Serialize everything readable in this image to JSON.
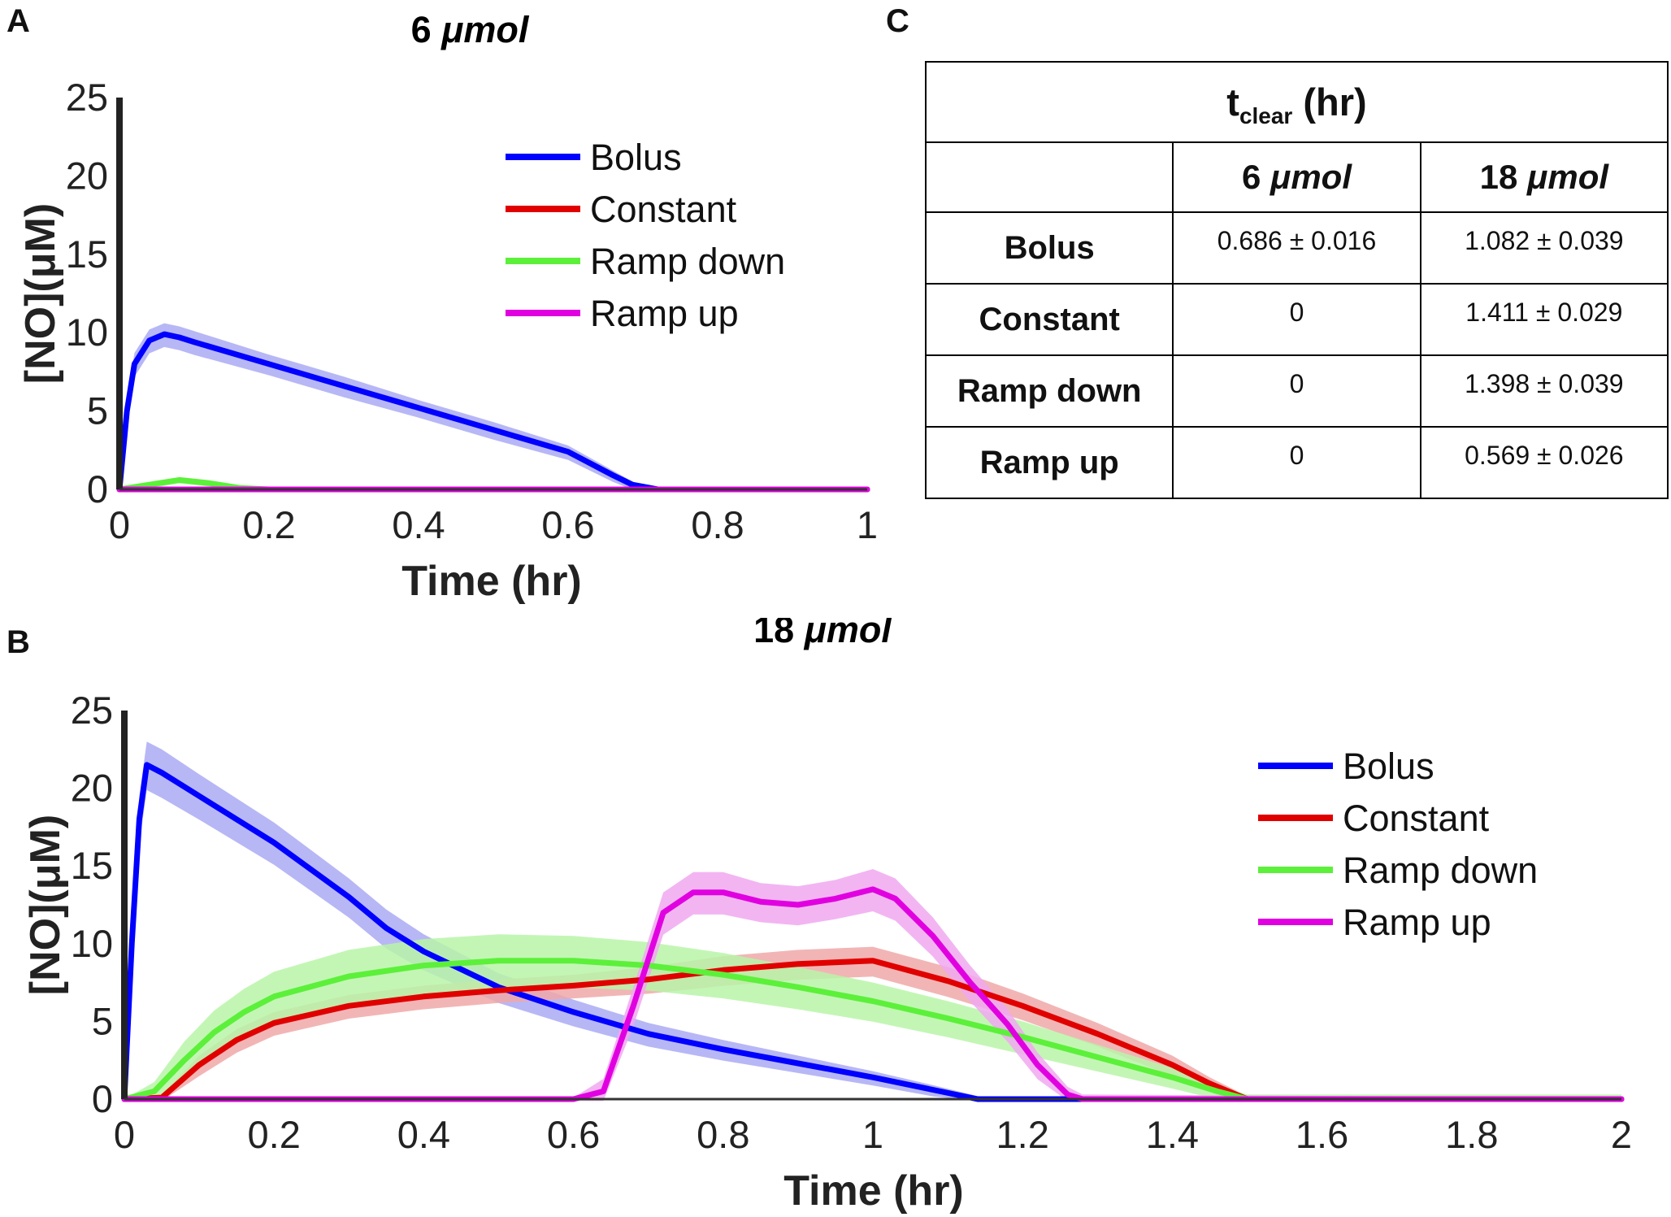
{
  "panels": {
    "a": "A",
    "b": "B",
    "c": "C"
  },
  "chart_data": [
    {
      "type": "line",
      "panel": "A",
      "title_num": "6",
      "title_unit": "μmol",
      "xlabel": "Time (hr)",
      "ylabel": "[NO](μM)",
      "xlim": [
        0,
        1
      ],
      "ylim": [
        0,
        25
      ],
      "xticks": [
        0,
        0.2,
        0.4,
        0.6,
        0.8,
        1
      ],
      "xtick_labels": [
        "0",
        "0.2",
        "0.4",
        "0.6",
        "0.8",
        "1"
      ],
      "yticks": [
        0,
        5,
        10,
        15,
        20,
        25
      ],
      "ytick_labels": [
        "0",
        "5",
        "10",
        "15",
        "20",
        "25"
      ],
      "legend_position": "top-right",
      "series": [
        {
          "name": "Bolus",
          "color": "#0000ff",
          "band": "#aaaaf5",
          "x": [
            0,
            0.01,
            0.02,
            0.04,
            0.06,
            0.08,
            0.1,
            0.2,
            0.3,
            0.4,
            0.5,
            0.6,
            0.66,
            0.686,
            0.72,
            1.0
          ],
          "y": [
            0,
            5,
            8,
            9.5,
            9.9,
            9.7,
            9.4,
            8.0,
            6.6,
            5.2,
            3.8,
            2.4,
            0.9,
            0.3,
            0,
            0
          ],
          "err": [
            0,
            0.6,
            0.7,
            0.7,
            0.7,
            0.7,
            0.7,
            0.6,
            0.6,
            0.5,
            0.5,
            0.4,
            0.3,
            0.2,
            0,
            0
          ]
        },
        {
          "name": "Constant",
          "color": "#e00000",
          "band": "#f0a8a8",
          "x": [
            0,
            1.0
          ],
          "y": [
            0,
            0
          ],
          "err": [
            0.05,
            0.05
          ]
        },
        {
          "name": "Ramp down",
          "color": "#5cf03a",
          "band": "#b8f5a8",
          "x": [
            0,
            0.04,
            0.08,
            0.12,
            0.16,
            0.2,
            1.0
          ],
          "y": [
            0,
            0.3,
            0.6,
            0.4,
            0.1,
            0,
            0
          ],
          "err": [
            0,
            0.1,
            0.1,
            0.1,
            0.05,
            0,
            0
          ]
        },
        {
          "name": "Ramp up",
          "color": "#e000e0",
          "band": "#f0a8f0",
          "x": [
            0,
            1.0
          ],
          "y": [
            0,
            0
          ],
          "err": [
            0.1,
            0.1
          ]
        }
      ]
    },
    {
      "type": "line",
      "panel": "B",
      "title_num": "18",
      "title_unit": "μmol",
      "xlabel": "Time (hr)",
      "ylabel": "[NO](μM)",
      "xlim": [
        0,
        2
      ],
      "ylim": [
        0,
        25
      ],
      "xticks": [
        0,
        0.2,
        0.4,
        0.6,
        0.8,
        1,
        1.2,
        1.4,
        1.6,
        1.8,
        2
      ],
      "xtick_labels": [
        "0",
        "0.2",
        "0.4",
        "0.6",
        "0.8",
        "1",
        "1.2",
        "1.4",
        "1.6",
        "1.8",
        "2"
      ],
      "yticks": [
        0,
        5,
        10,
        15,
        20,
        25
      ],
      "ytick_labels": [
        "0",
        "5",
        "10",
        "15",
        "20",
        "25"
      ],
      "legend_position": "right",
      "series": [
        {
          "name": "Bolus",
          "color": "#0000ff",
          "band": "#aaaaf5",
          "x": [
            0,
            0.01,
            0.02,
            0.03,
            0.05,
            0.1,
            0.2,
            0.3,
            0.35,
            0.4,
            0.5,
            0.6,
            0.7,
            0.8,
            0.9,
            1.0,
            1.08,
            1.14,
            1.2,
            2.0
          ],
          "y": [
            0,
            10,
            18,
            21.5,
            21,
            19.5,
            16.5,
            13,
            11,
            9.5,
            7.2,
            5.6,
            4.2,
            3.2,
            2.3,
            1.4,
            0.6,
            0,
            0,
            0
          ],
          "err": [
            0,
            1.2,
            1.5,
            1.5,
            1.5,
            1.4,
            1.3,
            1.2,
            1.2,
            1.1,
            0.9,
            0.8,
            0.7,
            0.6,
            0.5,
            0.4,
            0.3,
            0.2,
            0,
            0
          ]
        },
        {
          "name": "Constant",
          "color": "#e00000",
          "band": "#f0a8a8",
          "x": [
            0,
            0.05,
            0.1,
            0.15,
            0.2,
            0.3,
            0.4,
            0.5,
            0.6,
            0.7,
            0.8,
            0.9,
            1.0,
            1.1,
            1.2,
            1.3,
            1.4,
            1.45,
            1.5,
            2.0
          ],
          "y": [
            0,
            0.1,
            2.2,
            3.8,
            4.9,
            6.0,
            6.6,
            7.0,
            7.3,
            7.7,
            8.3,
            8.7,
            8.9,
            7.6,
            6.0,
            4.2,
            2.2,
            1.0,
            0,
            0
          ],
          "err": [
            0,
            0.2,
            0.6,
            0.7,
            0.7,
            0.7,
            0.7,
            0.7,
            0.7,
            0.8,
            0.9,
            0.9,
            0.9,
            0.9,
            0.8,
            0.7,
            0.6,
            0.4,
            0.2,
            0.2
          ]
        },
        {
          "name": "Ramp down",
          "color": "#5cf03a",
          "band": "#b8f5a8",
          "x": [
            0,
            0.04,
            0.08,
            0.12,
            0.16,
            0.2,
            0.3,
            0.4,
            0.5,
            0.6,
            0.7,
            0.8,
            0.9,
            1.0,
            1.1,
            1.2,
            1.3,
            1.4,
            1.46,
            1.5,
            2.0
          ],
          "y": [
            0,
            0.5,
            2.5,
            4.3,
            5.6,
            6.6,
            7.9,
            8.6,
            8.9,
            8.9,
            8.6,
            8.0,
            7.2,
            6.3,
            5.2,
            4.0,
            2.7,
            1.4,
            0.5,
            0,
            0
          ],
          "err": [
            0,
            0.6,
            1.2,
            1.4,
            1.5,
            1.6,
            1.7,
            1.7,
            1.7,
            1.6,
            1.5,
            1.4,
            1.3,
            1.2,
            1.1,
            1.0,
            0.8,
            0.6,
            0.4,
            0.3,
            0.3
          ]
        },
        {
          "name": "Ramp up",
          "color": "#e000e0",
          "band": "#f0a8f0",
          "x": [
            0,
            0.6,
            0.64,
            0.68,
            0.72,
            0.76,
            0.8,
            0.85,
            0.9,
            0.95,
            1.0,
            1.03,
            1.08,
            1.13,
            1.18,
            1.22,
            1.26,
            1.28,
            2.0
          ],
          "y": [
            0,
            0,
            0.5,
            6.0,
            12.0,
            13.3,
            13.3,
            12.7,
            12.5,
            12.9,
            13.5,
            12.9,
            10.5,
            7.5,
            4.8,
            2.2,
            0.3,
            0,
            0
          ],
          "err": [
            0.1,
            0.1,
            0.8,
            1.2,
            1.3,
            1.3,
            1.3,
            1.2,
            1.2,
            1.2,
            1.3,
            1.3,
            1.2,
            1.1,
            1.0,
            0.8,
            0.5,
            0.3,
            0.1
          ]
        }
      ]
    }
  ],
  "table": {
    "title_main": "t",
    "title_sub": "clear",
    "title_rest": " (hr)",
    "col_headers": [
      {
        "num": "6",
        "unit": "μmol"
      },
      {
        "num": "18",
        "unit": "μmol"
      }
    ],
    "rows": [
      {
        "name": "Bolus",
        "v6": "0.686 ±  0.016",
        "v18": "1.082 ± 0.039"
      },
      {
        "name": "Constant",
        "v6": "0",
        "v18": "1.411 ± 0.029"
      },
      {
        "name": "Ramp down",
        "v6": "0",
        "v18": "1.398 ± 0.039"
      },
      {
        "name": "Ramp up",
        "v6": "0",
        "v18": "0.569 ± 0.026"
      }
    ]
  }
}
